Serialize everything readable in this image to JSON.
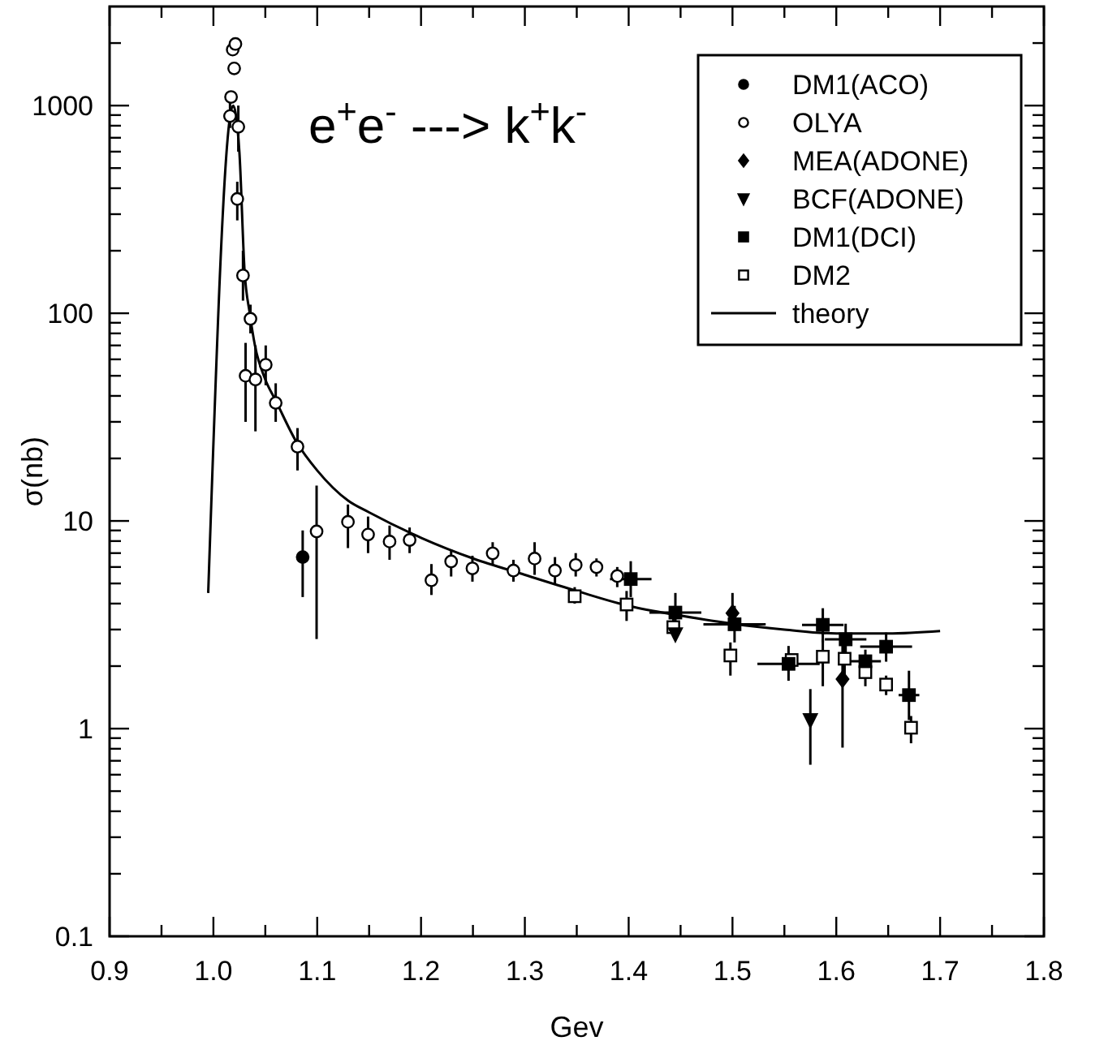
{
  "chart_data": {
    "type": "scatter",
    "xlabel": "Gev",
    "ylabel": "σ(nb)",
    "annotations": [
      "e$^{+}$e$^{-}$ ---> k$^{+}$k$^{-}$"
    ],
    "log": "y",
    "grid": false,
    "legend": "top right",
    "xlim": [
      0.9,
      1.8
    ],
    "ylim": [
      0.1,
      3000
    ],
    "xticks": [
      0.9,
      {
        "value": 0.95,
        "label": null
      },
      {
        "value": 1.0,
        "label": "1.0"
      },
      {
        "value": 1.05,
        "label": null
      },
      1.1,
      {
        "value": 1.15,
        "label": null
      },
      1.2,
      {
        "value": 1.25,
        "label": null
      },
      1.3,
      {
        "value": 1.35,
        "label": null
      },
      1.4,
      {
        "value": 1.45,
        "label": null
      },
      1.5,
      {
        "value": 1.55,
        "label": null
      },
      1.6,
      {
        "value": 1.65,
        "label": null
      },
      1.7,
      {
        "value": 1.75,
        "label": null
      },
      1.8
    ],
    "yticks": [
      0.1,
      {
        "value": 0.2,
        "label": null
      },
      {
        "value": 0.3,
        "label": null
      },
      {
        "value": 0.4,
        "label": null
      },
      {
        "value": 0.5,
        "label": null
      },
      {
        "value": 0.6,
        "label": null
      },
      {
        "value": 0.7,
        "label": null
      },
      {
        "value": 0.8,
        "label": null
      },
      {
        "value": 0.9,
        "label": null
      },
      1,
      {
        "value": 2,
        "label": null
      },
      {
        "value": 3,
        "label": null
      },
      {
        "value": 4,
        "label": null
      },
      {
        "value": 5,
        "label": null
      },
      {
        "value": 6,
        "label": null
      },
      {
        "value": 7,
        "label": null
      },
      {
        "value": 8,
        "label": null
      },
      {
        "value": 9,
        "label": null
      },
      10,
      {
        "value": 20,
        "label": null
      },
      {
        "value": 30,
        "label": null
      },
      {
        "value": 40,
        "label": null
      },
      {
        "value": 50,
        "label": null
      },
      {
        "value": 60,
        "label": null
      },
      {
        "value": 70,
        "label": null
      },
      {
        "value": 80,
        "label": null
      },
      {
        "value": 90,
        "label": null
      },
      100,
      {
        "value": 200,
        "label": null
      },
      {
        "value": 300,
        "label": null
      },
      {
        "value": 400,
        "label": null
      },
      {
        "value": 500,
        "label": null
      },
      {
        "value": 600,
        "label": null
      },
      {
        "value": 700,
        "label": null
      },
      {
        "value": 800,
        "label": null
      },
      {
        "value": 900,
        "label": null
      },
      1000,
      {
        "value": 2000,
        "label": null
      }
    ],
    "series": [
      {
        "name": "DM1(ACO)",
        "color": "#000000",
        "marker": "circle",
        "x": [
          1.086
        ],
        "values": [
          6.7
        ],
        "errors": [
          [
            4.3,
            9.0
          ]
        ]
      },
      {
        "name": "OLYA",
        "color": "#ffffff",
        "marker": "circle",
        "x": [
          1.016,
          1.017,
          1.0186,
          1.02,
          1.0212,
          1.023,
          1.024,
          1.0285,
          1.031,
          1.0357,
          1.0405,
          1.0504,
          1.06,
          1.081,
          1.0994,
          1.1296,
          1.149,
          1.1697,
          1.189,
          1.21,
          1.229,
          1.2495,
          1.269,
          1.289,
          1.3094,
          1.329,
          1.349,
          1.369,
          1.389
        ],
        "values": [
          890,
          1100,
          1860,
          1510,
          1980,
          355,
          790,
          152,
          50,
          94,
          48,
          56.5,
          37,
          22.8,
          8.9,
          9.9,
          8.6,
          7.96,
          8.1,
          5.18,
          6.38,
          5.91,
          6.98,
          5.77,
          6.59,
          5.77,
          6.14,
          5.99,
          5.43
        ],
        "errors": [
          [
            780,
            1050
          ],
          null,
          null,
          null,
          null,
          [
            280,
            430
          ],
          [
            600,
            1000
          ],
          [
            115,
            200
          ],
          [
            30,
            72
          ],
          [
            80,
            110
          ],
          [
            27,
            70
          ],
          [
            45,
            70
          ],
          [
            30,
            46
          ],
          [
            17.5,
            28
          ],
          [
            2.7,
            14.8
          ],
          [
            7.4,
            12
          ],
          [
            7,
            10.5
          ],
          [
            6.5,
            9.5
          ],
          [
            7,
            9.3
          ],
          [
            4.4,
            6.2
          ],
          [
            5.4,
            7.3
          ],
          [
            5.1,
            6.8
          ],
          [
            6.1,
            7.9
          ],
          [
            5.1,
            6.5
          ],
          [
            5.5,
            7.9
          ],
          [
            5,
            6.7
          ],
          [
            5.4,
            7
          ],
          [
            5.4,
            6.6
          ],
          [
            4.8,
            6
          ]
        ]
      },
      {
        "name": "MEA(ADONE)",
        "color": "#000000",
        "marker": "diamond",
        "x": [
          1.5,
          1.606
        ],
        "values": [
          3.6,
          1.73
        ],
        "errors": [
          [
            3.0,
            4.5
          ],
          [
            0.81,
            2.6
          ]
        ]
      },
      {
        "name": "BCF(ADONE)",
        "color": "#000000",
        "marker": "triangle",
        "x": [
          1.445,
          1.575
        ],
        "values": [
          2.85,
          1.1
        ],
        "errors": [
          null,
          [
            0.67,
            1.55
          ]
        ]
      },
      {
        "name": "DM1(DCI)",
        "color": "#000000",
        "marker": "square",
        "x": [
          1.402,
          1.445,
          1.502,
          1.554,
          1.587,
          1.609,
          1.628,
          1.648,
          1.67
        ],
        "values": [
          5.25,
          3.62,
          3.18,
          2.05,
          3.16,
          2.69,
          2.11,
          2.48,
          1.45
        ],
        "errors": [
          [
            4.3,
            6.4
          ],
          [
            2.9,
            4.5
          ],
          [
            2.6,
            3.9
          ],
          [
            1.7,
            2.5
          ],
          [
            2.6,
            3.8
          ],
          [
            2.3,
            3.2
          ],
          [
            1.85,
            2.4
          ],
          [
            2.1,
            2.9
          ],
          [
            1.1,
            1.9
          ]
        ],
        "xerrors": [
          0.02,
          0.025,
          0.03,
          0.03,
          0.02,
          0.02,
          0.015,
          0.025,
          0.01
        ]
      },
      {
        "name": "DM2",
        "color": "#ffffff",
        "marker": "square",
        "x": [
          1.348,
          1.398,
          1.443,
          1.498,
          1.557,
          1.587,
          1.608,
          1.628,
          1.648,
          1.672
        ],
        "values": [
          4.34,
          3.96,
          3.08,
          2.25,
          2.14,
          2.22,
          2.17,
          1.87,
          1.63,
          1.01
        ],
        "errors": [
          [
            4.0,
            4.8
          ],
          [
            3.3,
            4.6
          ],
          [
            2.8,
            3.4
          ],
          [
            1.8,
            2.6
          ],
          null,
          [
            1.6,
            2.7
          ],
          [
            1.8,
            2.6
          ],
          [
            1.6,
            2.2
          ],
          [
            1.45,
            1.8
          ],
          [
            0.85,
            1.15
          ]
        ]
      },
      {
        "name": "theory",
        "type": "line",
        "color": "#000000",
        "marker": "none",
        "line_style": "solid",
        "x": [
          0.995,
          1.019,
          1.025,
          1.03,
          1.035,
          1.04,
          1.05,
          1.06,
          1.08,
          1.1,
          1.13,
          1.15,
          1.2,
          1.25,
          1.3,
          1.35,
          1.4,
          1.45,
          1.5,
          1.55,
          1.6,
          1.65,
          1.7
        ],
        "values": [
          4.5,
          1000,
          600,
          160,
          100,
          70,
          48,
          38,
          24,
          17.5,
          12.5,
          11,
          8.3,
          6.6,
          5.5,
          4.6,
          3.9,
          3.5,
          3.2,
          3.0,
          2.87,
          2.87,
          2.95
        ]
      }
    ]
  }
}
